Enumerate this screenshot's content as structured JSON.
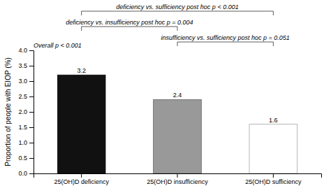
{
  "chart_data": {
    "type": "bar",
    "categories": [
      "25(OH)D deficiency",
      "25(OH)D insufficiency",
      "25(OH)D sufficiency"
    ],
    "values": [
      3.2,
      2.4,
      1.6
    ],
    "colors": [
      "#111111",
      "#999999",
      "#ffffff"
    ],
    "ylabel": "Proportion of people with EIOP (%)",
    "ylim": [
      0,
      4.0
    ],
    "yticks": [
      {
        "value": 0,
        "label": "0.0"
      },
      0.5,
      {
        "value": 1.0,
        "label": "1.0"
      },
      1.5,
      {
        "value": 2.0,
        "label": "2.0"
      },
      2.5,
      {
        "value": 3.0,
        "label": "3.0"
      },
      3.5,
      {
        "value": 4.0,
        "label": "4.0"
      }
    ],
    "data_labels": true,
    "grid": false,
    "annotations": [
      {
        "text": "Overall p < 0.001"
      },
      {
        "text": "deficiency vs. sufficiency post hoc p < 0.001",
        "between": [
          "25(OH)D deficiency",
          "25(OH)D sufficiency"
        ]
      },
      {
        "text": "deficiency vs. insufficiency post hoc p = 0.004",
        "between": [
          "25(OH)D deficiency",
          "25(OH)D insufficiency"
        ]
      },
      {
        "text": "insufficiency vs. sufficiency post hoc p = 0.051",
        "between": [
          "25(OH)D insufficiency",
          "25(OH)D sufficiency"
        ]
      }
    ]
  }
}
